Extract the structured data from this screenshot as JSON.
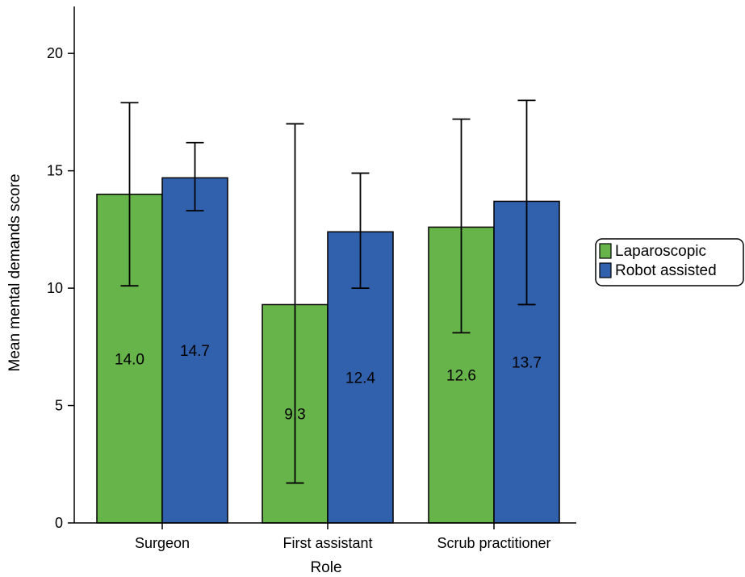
{
  "chart_data": {
    "type": "bar",
    "xlabel": "Role",
    "ylabel": "Mean mental demands score",
    "ylim": [
      0,
      22
    ],
    "yticks": [
      0,
      5,
      10,
      15,
      20
    ],
    "grid": false,
    "legend_position": "right",
    "categories": [
      "Surgeon",
      "First assistant",
      "Scrub practitioner"
    ],
    "series": [
      {
        "name": "Laparoscopic",
        "color": "#66b44a",
        "values": [
          14.0,
          9.3,
          12.6
        ],
        "value_labels": [
          "14.0",
          "9.3",
          "12.6"
        ],
        "error_low": [
          10.1,
          1.7,
          8.1
        ],
        "error_high": [
          17.9,
          17.0,
          17.2
        ]
      },
      {
        "name": "Robot assisted",
        "color": "#3160ad",
        "values": [
          14.7,
          12.4,
          13.7
        ],
        "value_labels": [
          "14.7",
          "12.4",
          "13.7"
        ],
        "error_low": [
          13.3,
          10.0,
          9.3
        ],
        "error_high": [
          16.2,
          14.9,
          18.0
        ]
      }
    ]
  }
}
